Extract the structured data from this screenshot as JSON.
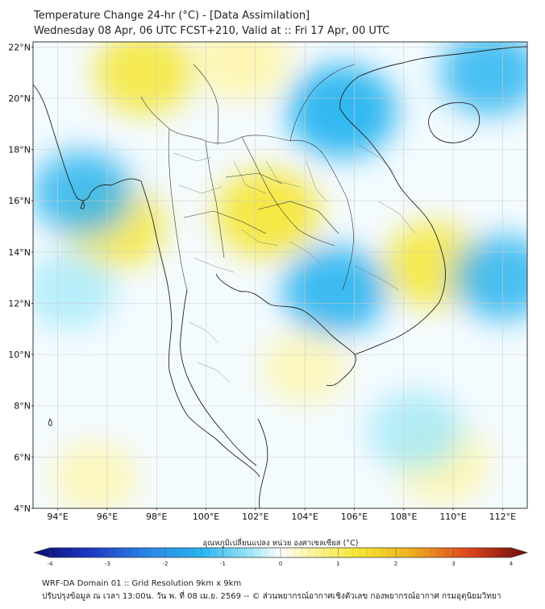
{
  "title": {
    "line1": "Temperature Change 24-hr (°C) - [Data Assimilation]",
    "line2": "Wednesday 08 Apr, 06 UTC FCST+210, Valid at :: Fri 17 Apr, 00 UTC"
  },
  "axes": {
    "lat_labels": [
      "22°N",
      "20°N",
      "18°N",
      "16°N",
      "14°N",
      "12°N",
      "10°N",
      "8°N",
      "6°N",
      "4°N"
    ],
    "lon_labels": [
      "94°E",
      "96°E",
      "98°E",
      "100°E",
      "102°E",
      "104°E",
      "106°E",
      "108°E",
      "110°E",
      "112°E"
    ],
    "lat_values": [
      22,
      20,
      18,
      16,
      14,
      12,
      10,
      8,
      6,
      4
    ],
    "lon_values": [
      94,
      96,
      98,
      100,
      102,
      104,
      106,
      108,
      110,
      112
    ],
    "lat_range": [
      4,
      22.2
    ],
    "lon_range": [
      93,
      113
    ]
  },
  "colorbar": {
    "label": "อุณหภูมิเปลี่ยนแปลง หน่วย องศาเซลเซียส (°C)",
    "ticks": [
      "-4",
      "-3",
      "-2",
      "-1",
      "0",
      "1",
      "2",
      "3",
      "4"
    ],
    "tick_values": [
      -4,
      -3,
      -2,
      -1,
      0,
      1,
      2,
      3,
      4
    ],
    "range": [
      -4,
      4
    ]
  },
  "palette": {
    "cold_extreme": "#0a0a6e",
    "cold": "#1e3cc8",
    "cool": "#28b4f0",
    "light_cool": "#a0e8f8",
    "neutral": "#ffffff",
    "light_warm": "#fff5a0",
    "warm": "#f5e632",
    "hot": "#f07814",
    "hot_extreme": "#6e0a0a",
    "border": "#222222",
    "grid": "#cccccc"
  },
  "field": {
    "description_values": "Temperature change anomalies (°C)",
    "warm_zones": [
      {
        "name": "north-myanmar",
        "lon": 97.5,
        "lat": 21.0,
        "value": 0.8
      },
      {
        "name": "northeast-thailand",
        "lon": 102.5,
        "lat": 15.5,
        "value": 0.9
      },
      {
        "name": "central-myanmar",
        "lon": 96.3,
        "lat": 15.0,
        "value": 0.8
      },
      {
        "name": "yunnan",
        "lon": 101.5,
        "lat": 21.5,
        "value": 0.7
      },
      {
        "name": "east-vietnam-coast",
        "lon": 109.2,
        "lat": 13.5,
        "value": 0.8
      },
      {
        "name": "south-china-sea-se",
        "lon": 109.5,
        "lat": 5.8,
        "value": 0.7
      },
      {
        "name": "gulf-east",
        "lon": 104.0,
        "lat": 9.5,
        "value": 0.5
      },
      {
        "name": "andaman-south",
        "lon": 95.5,
        "lat": 5.2,
        "value": 0.5
      }
    ],
    "cool_zones": [
      {
        "name": "north-vietnam",
        "lon": 105.5,
        "lat": 19.5,
        "value": -1.0
      },
      {
        "name": "cambodia",
        "lon": 105.2,
        "lat": 12.5,
        "value": -0.9
      },
      {
        "name": "hainan-east",
        "lon": 111.5,
        "lat": 21.0,
        "value": -0.8
      },
      {
        "name": "south-china-sea-east",
        "lon": 112.0,
        "lat": 13.0,
        "value": -0.8
      },
      {
        "name": "bay-of-bengal",
        "lon": 95.0,
        "lat": 16.3,
        "value": -0.8
      },
      {
        "name": "andaman-central",
        "lon": 94.5,
        "lat": 12.5,
        "value": -0.6
      },
      {
        "name": "south-china-sea-south",
        "lon": 108.5,
        "lat": 7.0,
        "value": -0.7
      }
    ]
  },
  "footer": {
    "line1": "WRF-DA Domain 01 :: Grid Resolution 9km x 9km",
    "line2": "ปรับปรุงข้อมูล ณ เวลา 13:00น. วัน พ. ที่ 08 เม.ย. 2569 -- © ส่วนพยากรณ์อากาศเชิงตัวเลข กองพยากรณ์อากาศ กรมอุตุนิยมวิทยา"
  }
}
